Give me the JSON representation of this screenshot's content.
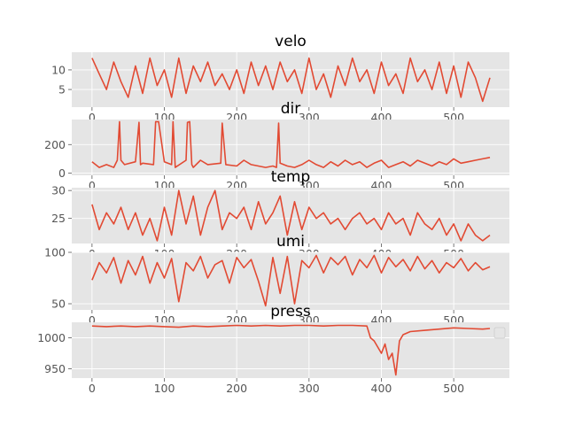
{
  "chart_data": [
    {
      "type": "line",
      "title": "velo",
      "x": [
        0,
        10,
        20,
        30,
        40,
        50,
        60,
        70,
        80,
        90,
        100,
        110,
        120,
        130,
        140,
        150,
        160,
        170,
        180,
        190,
        200,
        210,
        220,
        230,
        240,
        250,
        260,
        270,
        280,
        290,
        300,
        310,
        320,
        330,
        340,
        350,
        360,
        370,
        380,
        390,
        400,
        410,
        420,
        430,
        440,
        450,
        460,
        470,
        480,
        490,
        500,
        510,
        520,
        530,
        540,
        550
      ],
      "series": [
        {
          "values": [
            13,
            9,
            5,
            12,
            7,
            3,
            11,
            4,
            13,
            6,
            10,
            3,
            13,
            4,
            11,
            7,
            12,
            6,
            9,
            5,
            10,
            4,
            12,
            6,
            11,
            5,
            12,
            7,
            10,
            4,
            13,
            5,
            9,
            3,
            11,
            6,
            13,
            7,
            10,
            4,
            12,
            6,
            9,
            4,
            13,
            7,
            10,
            5,
            12,
            4,
            11,
            3,
            12,
            8,
            2,
            8
          ]
        }
      ],
      "xlim": [
        -28,
        577
      ],
      "ylim": [
        0.5,
        14.5
      ],
      "yticks": [
        "5",
        "10"
      ],
      "xticks": [
        "0",
        "100",
        "200",
        "300",
        "400",
        "500"
      ],
      "grid": true
    },
    {
      "type": "line",
      "title": "dir",
      "x": [
        0,
        10,
        20,
        30,
        35,
        38,
        40,
        45,
        60,
        65,
        67,
        70,
        85,
        88,
        92,
        100,
        110,
        112,
        115,
        130,
        132,
        135,
        138,
        140,
        150,
        160,
        178,
        180,
        185,
        200,
        210,
        220,
        240,
        250,
        255,
        258,
        260,
        270,
        280,
        290,
        300,
        310,
        320,
        330,
        340,
        350,
        360,
        370,
        380,
        390,
        400,
        410,
        420,
        430,
        440,
        450,
        460,
        470,
        480,
        490,
        500,
        510,
        520,
        530,
        540,
        550
      ],
      "series": [
        {
          "values": [
            80,
            40,
            60,
            40,
            90,
            360,
            90,
            60,
            80,
            355,
            60,
            70,
            60,
            360,
            360,
            80,
            60,
            360,
            40,
            90,
            355,
            360,
            60,
            40,
            90,
            60,
            70,
            350,
            60,
            50,
            90,
            60,
            40,
            50,
            40,
            350,
            70,
            50,
            40,
            60,
            90,
            60,
            40,
            80,
            50,
            90,
            60,
            80,
            40,
            70,
            90,
            40,
            60,
            80,
            50,
            90,
            70,
            50,
            80,
            60,
            100,
            70,
            80,
            90,
            100,
            110
          ]
        }
      ],
      "xlim": [
        -28,
        577
      ],
      "ylim": [
        -15,
        375
      ],
      "yticks": [
        "0",
        "200"
      ],
      "xticks": [
        "0",
        "100",
        "200",
        "300",
        "400",
        "500"
      ],
      "grid": true
    },
    {
      "type": "line",
      "title": "temp",
      "x": [
        0,
        10,
        20,
        30,
        40,
        50,
        60,
        70,
        80,
        90,
        100,
        110,
        120,
        130,
        140,
        150,
        160,
        170,
        180,
        190,
        200,
        210,
        220,
        230,
        240,
        250,
        260,
        270,
        280,
        290,
        300,
        310,
        320,
        330,
        340,
        350,
        360,
        370,
        380,
        390,
        400,
        410,
        420,
        430,
        440,
        450,
        460,
        470,
        480,
        490,
        500,
        510,
        520,
        530,
        540,
        550
      ],
      "series": [
        {
          "values": [
            27.5,
            23,
            26,
            24,
            27,
            23,
            26,
            22,
            25,
            21,
            27,
            22,
            30,
            24,
            29,
            22,
            27,
            30,
            23,
            26,
            25,
            27,
            23,
            28,
            24,
            26,
            29,
            22,
            28,
            23,
            27,
            25,
            26,
            24,
            25,
            23,
            25,
            26,
            24,
            25,
            23,
            26,
            24,
            25,
            22,
            26,
            24,
            23,
            25,
            22,
            24,
            21,
            24,
            22,
            21,
            22
          ]
        }
      ],
      "xlim": [
        -28,
        577
      ],
      "ylim": [
        20.5,
        30.5
      ],
      "yticks": [
        "25",
        "30"
      ],
      "xticks": [
        "0",
        "100",
        "200",
        "300",
        "400",
        "500"
      ],
      "grid": true
    },
    {
      "type": "line",
      "title": "umi",
      "x": [
        0,
        10,
        20,
        30,
        40,
        50,
        60,
        70,
        80,
        90,
        100,
        110,
        120,
        130,
        140,
        150,
        160,
        170,
        180,
        190,
        200,
        210,
        220,
        230,
        240,
        250,
        260,
        270,
        280,
        290,
        300,
        310,
        320,
        330,
        340,
        350,
        360,
        370,
        380,
        390,
        400,
        410,
        420,
        430,
        440,
        450,
        460,
        470,
        480,
        490,
        500,
        510,
        520,
        530,
        540,
        550
      ],
      "series": [
        {
          "values": [
            73,
            90,
            80,
            95,
            70,
            92,
            78,
            96,
            70,
            90,
            75,
            94,
            52,
            90,
            82,
            96,
            75,
            88,
            92,
            70,
            95,
            85,
            93,
            72,
            48,
            95,
            60,
            96,
            50,
            92,
            85,
            97,
            80,
            95,
            88,
            96,
            78,
            93,
            85,
            97,
            80,
            95,
            86,
            93,
            82,
            96,
            84,
            92,
            80,
            90,
            85,
            94,
            82,
            90,
            83,
            86
          ]
        }
      ],
      "xlim": [
        -28,
        577
      ],
      "ylim": [
        44,
        100
      ],
      "yticks": [
        "50",
        "100"
      ],
      "xticks": [
        "0",
        "100",
        "200",
        "300",
        "400",
        "500"
      ],
      "grid": true
    },
    {
      "type": "line",
      "title": "press",
      "x": [
        0,
        20,
        40,
        60,
        80,
        100,
        120,
        140,
        160,
        180,
        200,
        220,
        240,
        260,
        280,
        300,
        320,
        340,
        360,
        380,
        385,
        390,
        395,
        400,
        405,
        410,
        415,
        420,
        425,
        430,
        440,
        460,
        480,
        500,
        520,
        540,
        550
      ],
      "series": [
        {
          "values": [
            1019,
            1018,
            1019,
            1018,
            1019,
            1018,
            1017,
            1019,
            1018,
            1019,
            1020,
            1019,
            1020,
            1019,
            1020,
            1020,
            1019,
            1020,
            1020,
            1019,
            1000,
            995,
            985,
            975,
            990,
            965,
            975,
            940,
            995,
            1005,
            1010,
            1012,
            1014,
            1016,
            1015,
            1014,
            1015
          ]
        }
      ],
      "xlim": [
        -28,
        577
      ],
      "ylim": [
        935,
        1025
      ],
      "yticks": [
        "950",
        "1000"
      ],
      "xticks": [
        "0",
        "100",
        "200",
        "300",
        "400",
        "500"
      ],
      "grid": true,
      "legend": "right"
    }
  ],
  "colors": {
    "line": "#e24a33",
    "panel": "#e5e5e5",
    "grid": "#ffffff"
  }
}
